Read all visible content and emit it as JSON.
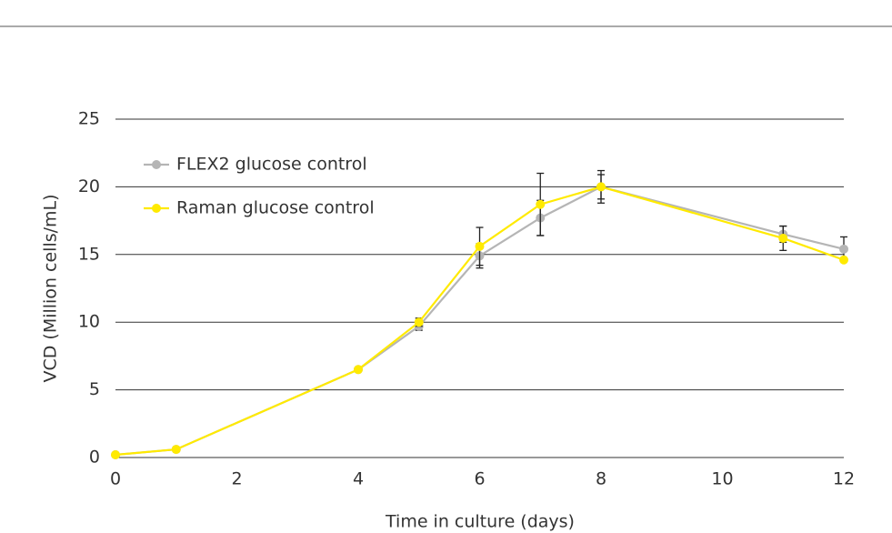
{
  "chart_data": {
    "type": "line",
    "x_label": "Time in culture (days)",
    "y_label": "VCD (Million cells/mL)",
    "x": [
      0,
      1,
      4,
      5,
      6,
      7,
      8,
      11,
      12
    ],
    "series": [
      {
        "name": "FLEX2 glucose control",
        "color": "#b5b5b5",
        "values": [
          0.2,
          0.6,
          6.5,
          9.7,
          14.9,
          17.7,
          20.0,
          16.5,
          15.4
        ],
        "errors": [
          null,
          null,
          null,
          0.3,
          0.9,
          1.3,
          1.2,
          0.6,
          0.9
        ]
      },
      {
        "name": "Raman glucose control",
        "color": "#ffea00",
        "values": [
          0.2,
          0.6,
          6.5,
          10.0,
          15.6,
          18.7,
          20.0,
          16.2,
          14.6
        ],
        "errors": [
          null,
          null,
          null,
          0.3,
          1.4,
          2.3,
          0.9,
          0.9,
          null
        ]
      }
    ],
    "xlim": [
      0,
      12
    ],
    "xticks": [
      0,
      2,
      4,
      6,
      8,
      10,
      12
    ],
    "ylim": [
      0,
      25
    ],
    "yticks": [
      0,
      5,
      10,
      15,
      20,
      25
    ],
    "grid": true,
    "legend": "upper-left"
  }
}
